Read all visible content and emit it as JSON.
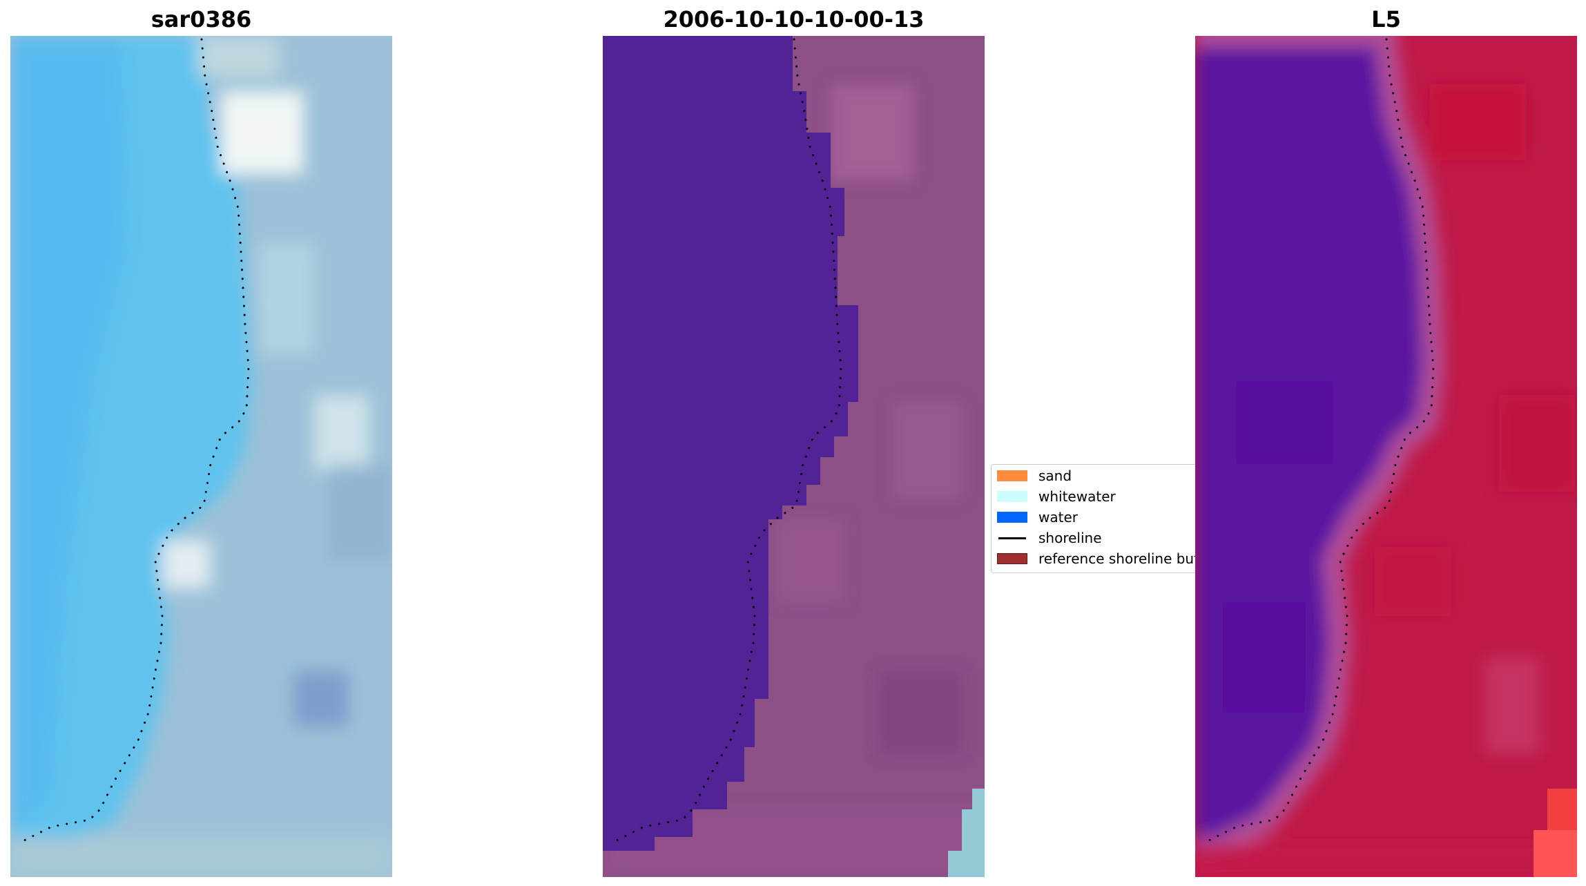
{
  "panels": {
    "left": {
      "title": "sar0386"
    },
    "middle": {
      "title": "2006-10-10-10-00-13"
    },
    "right": {
      "title": "L5"
    }
  },
  "legend": {
    "items": [
      {
        "label": "sand",
        "color": "#ff8c3c",
        "kind": "patch"
      },
      {
        "label": "whitewater",
        "color": "#ccffff",
        "kind": "patch"
      },
      {
        "label": "water",
        "color": "#0066ff",
        "kind": "patch"
      },
      {
        "label": "shoreline",
        "color": "#000000",
        "kind": "line"
      },
      {
        "label": "reference shoreline buffer",
        "color": "#a03030",
        "kind": "patch"
      }
    ]
  },
  "colors": {
    "sar_water": "#5bc4ee",
    "sar_land": "#9cc1d8",
    "class_water": "#522394",
    "class_land": "#8c4f86",
    "class_whitewater": "#94c9d6",
    "l5_water": "#5c15a0",
    "l5_land": "#bf1a48",
    "l5_bright": "#ff4040"
  }
}
